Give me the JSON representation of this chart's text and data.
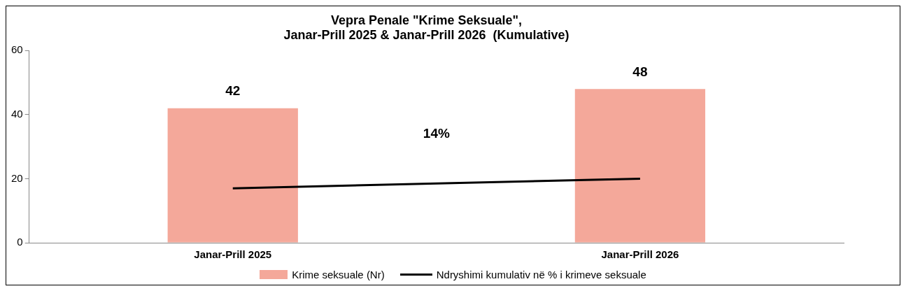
{
  "chart_data": {
    "type": "bar",
    "title": "Vepra Penale \"Krime Seksuale\",\nJanar-Prill 2025 & Janar-Prill 2026  (Kumulative)",
    "categories": [
      "Janar-Prill 2025",
      "Janar-Prill 2026"
    ],
    "series": [
      {
        "name": "Krime seksuale (Nr)",
        "color": "#f4a89a",
        "values": [
          42,
          48
        ],
        "value_labels": [
          "42",
          "48"
        ]
      },
      {
        "name": "Ndryshimi kumulativ në % i krimeve seksuale",
        "type": "line",
        "color": "#000000",
        "values": [
          17,
          20
        ]
      }
    ],
    "annotations": [
      "14%"
    ],
    "ylim": [
      0,
      60
    ],
    "yticks": [
      0,
      20,
      40,
      60
    ],
    "grid": false,
    "legend": "bottom",
    "marker": "none",
    "line_style": "solid"
  }
}
